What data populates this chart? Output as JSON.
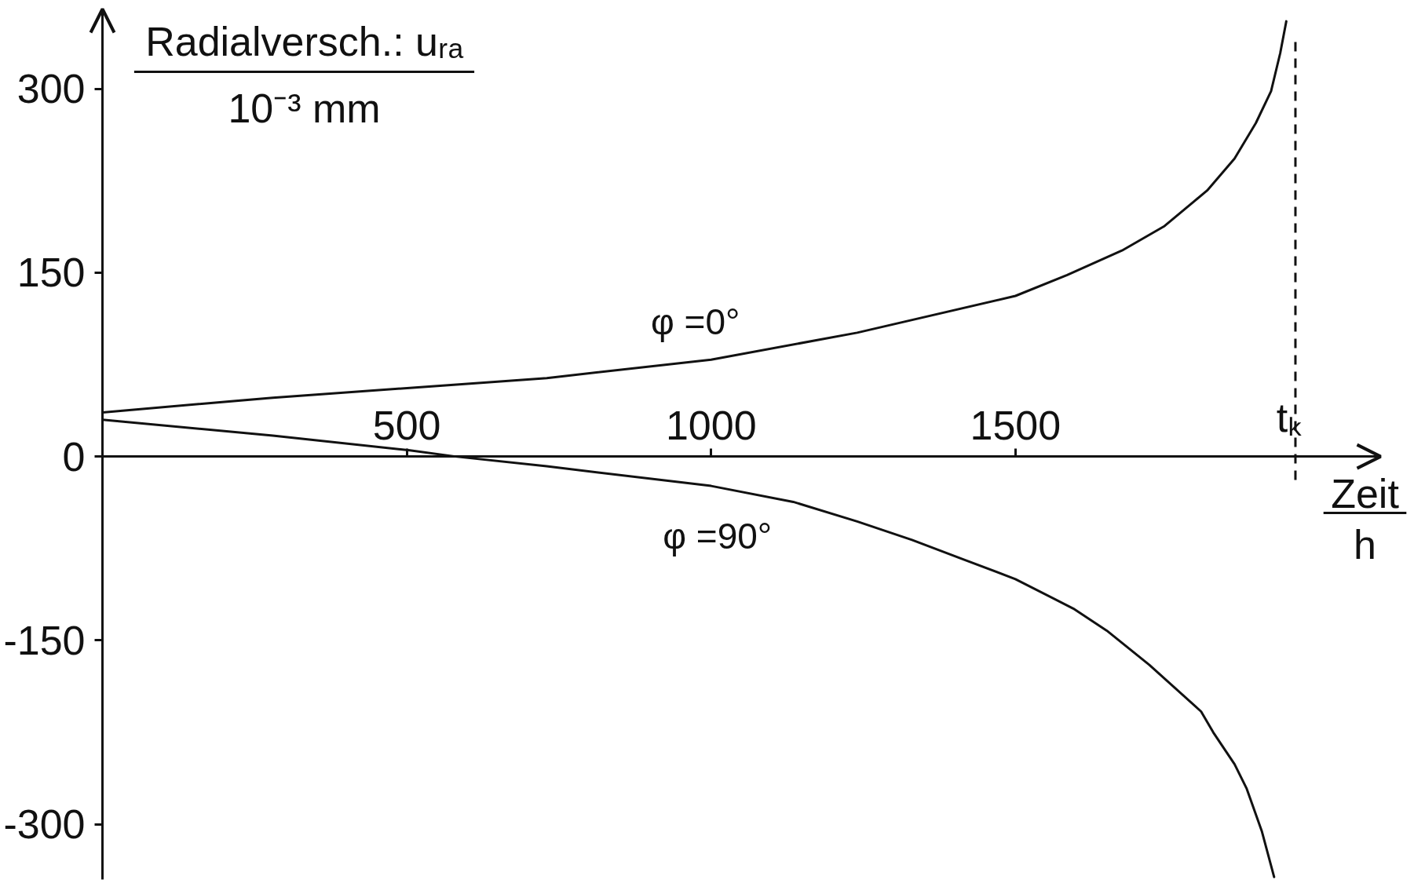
{
  "chart_data": {
    "type": "line",
    "xlabel": "Zeit\nh",
    "ylabel": "Radialversch.: uᵣₐ\n10⁻³ mm",
    "series": [
      {
        "name": "φ =0°",
        "color": "#111111",
        "x": [
          0,
          280,
          505,
          730,
          1000,
          1240,
          1500,
          1585,
          1675,
          1745,
          1815,
          1860,
          1895,
          1920,
          1935,
          1945
        ],
        "values": [
          36,
          48,
          56,
          64,
          79,
          101,
          131,
          148,
          168,
          188,
          217,
          243,
          272,
          298,
          329,
          355
        ]
      },
      {
        "name": "φ =90°",
        "color": "#111111",
        "x": [
          0,
          280,
          505,
          580,
          730,
          1000,
          1135,
          1240,
          1330,
          1415,
          1500,
          1595,
          1650,
          1720,
          1805,
          1825,
          1860,
          1880,
          1905,
          1925
        ],
        "values": [
          30,
          17,
          5,
          0,
          -8,
          -24,
          -37,
          -53,
          -68,
          -84,
          -100,
          -124,
          -142,
          -170,
          -208,
          -225,
          -251,
          -271,
          -306,
          -343
        ]
      }
    ],
    "xlim": [
      0,
      2100
    ],
    "xticks": [
      500,
      1000,
      1500
    ],
    "ylim": [
      -345,
      365
    ],
    "yticks": [
      -300,
      -150,
      0,
      150,
      300
    ],
    "ref_lines": [
      {
        "axis": "x",
        "value": 1960,
        "label": "tₖ",
        "line_style": "dashed"
      }
    ],
    "grid": false
  }
}
